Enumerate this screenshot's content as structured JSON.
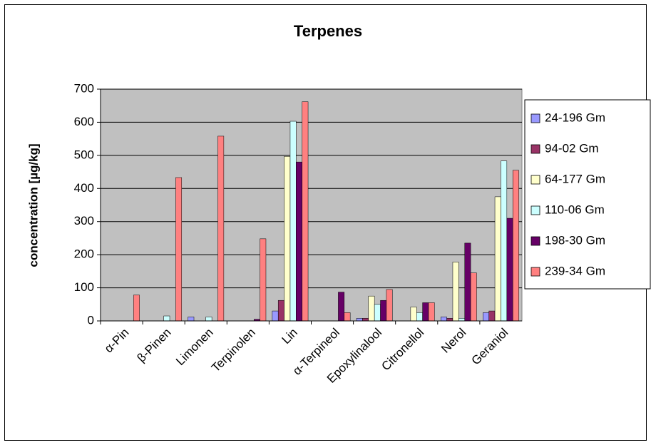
{
  "chart_data": {
    "type": "bar",
    "title": "Terpenes",
    "y_label": "concentration [µg/kg]",
    "categories": [
      "α-Pin",
      "β-Pinen",
      "Limonen",
      "Terpinolen",
      "Lin",
      "α-Terpineol",
      "Epoxylinalool",
      "Citronellol",
      "Nerol",
      "Geraniol"
    ],
    "series": [
      {
        "name": "24-196 Gm",
        "color": "#9999ff",
        "values": [
          0,
          0,
          12,
          0,
          30,
          0,
          8,
          0,
          12,
          25
        ]
      },
      {
        "name": "94-02 Gm",
        "color": "#993366",
        "values": [
          0,
          0,
          0,
          0,
          62,
          0,
          8,
          0,
          8,
          30
        ]
      },
      {
        "name": "64-177 Gm",
        "color": "#ffffcc",
        "values": [
          0,
          0,
          0,
          0,
          497,
          0,
          75,
          42,
          178,
          375
        ]
      },
      {
        "name": "110-06 Gm",
        "color": "#ccffff",
        "values": [
          0,
          15,
          12,
          0,
          603,
          0,
          50,
          25,
          8,
          483
        ]
      },
      {
        "name": "198-30 Gm",
        "color": "#660066",
        "values": [
          0,
          0,
          0,
          5,
          480,
          87,
          62,
          55,
          235,
          310
        ]
      },
      {
        "name": "239-34 Gm",
        "color": "#ff8080",
        "values": [
          78,
          433,
          558,
          248,
          662,
          25,
          95,
          55,
          145,
          455
        ]
      }
    ],
    "ylim": [
      0,
      700
    ],
    "yticks": [
      0,
      100,
      200,
      300,
      400,
      500,
      600,
      700
    ],
    "grid": true,
    "legend": "right"
  }
}
